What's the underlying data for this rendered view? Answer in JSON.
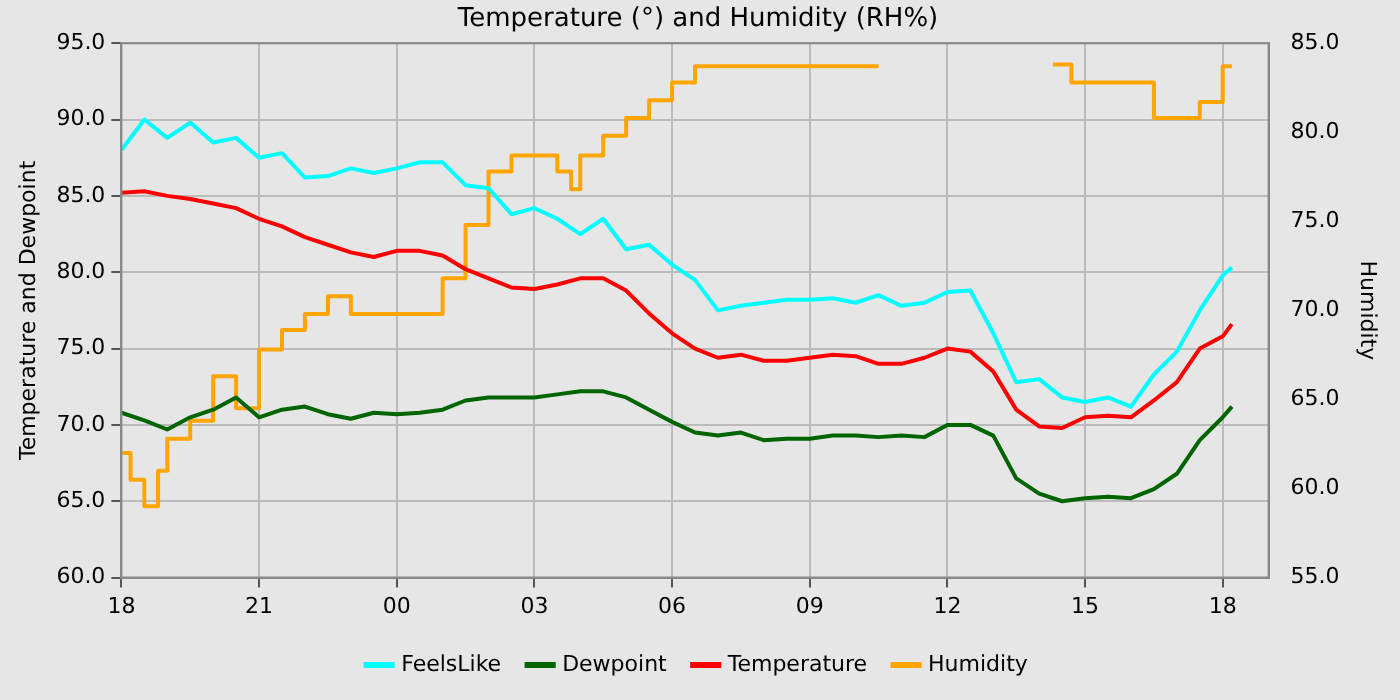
{
  "chart_data": {
    "type": "line",
    "title": "Temperature (°) and Humidity (RH%)",
    "ylabel": "Temperature and Dewpoint",
    "y2label": "Humidity",
    "x": [
      "--01-01T18:00",
      "--01-01T18:30",
      "--01-01T19:00",
      "--01-01T19:30",
      "--01-01T20:00",
      "--01-01T20:30",
      "--01-01T21:00",
      "--01-01T21:30",
      "--01-01T22:00",
      "--01-01T22:30",
      "--01-01T23:00",
      "--01-01T23:30",
      "--01-02T00:00",
      "--01-02T00:30",
      "--01-02T01:00",
      "--01-02T01:30",
      "--01-02T02:00",
      "--01-02T02:30",
      "--01-02T03:00",
      "--01-02T03:30",
      "--01-02T04:00",
      "--01-02T04:30",
      "--01-02T05:00",
      "--01-02T05:30",
      "--01-02T06:00",
      "--01-02T06:30",
      "--01-02T07:00",
      "--01-02T07:30",
      "--01-02T08:00",
      "--01-02T08:30",
      "--01-02T09:00",
      "--01-02T09:30",
      "--01-02T10:00",
      "--01-02T10:30",
      "--01-02T11:00",
      "--01-02T11:30",
      "--01-02T12:00",
      "--01-02T12:30",
      "--01-02T13:00",
      "--01-02T13:30",
      "--01-02T14:00",
      "--01-02T14:30",
      "--01-02T15:00",
      "--01-02T15:30",
      "--01-02T16:00",
      "--01-02T16:30",
      "--01-02T17:00",
      "--01-02T17:30",
      "--01-02T18:00",
      "--01-02T18:12"
    ],
    "series": [
      {
        "name": "FeelsLike",
        "color": "#00ffff",
        "values": [
          88.0,
          90.0,
          88.8,
          89.8,
          88.5,
          88.8,
          87.5,
          87.8,
          86.2,
          86.3,
          86.8,
          86.5,
          86.8,
          87.2,
          87.2,
          85.7,
          85.5,
          83.8,
          84.2,
          83.5,
          82.5,
          83.5,
          81.5,
          81.8,
          80.5,
          79.5,
          77.5,
          77.8,
          78.0,
          78.2,
          78.2,
          78.3,
          78.0,
          78.5,
          77.8,
          78.0,
          78.7,
          78.8,
          76.0,
          72.8,
          73.0,
          71.8,
          71.5,
          71.8,
          71.2,
          73.3,
          74.8,
          77.5,
          79.8,
          80.3
        ]
      },
      {
        "name": "Dewpoint",
        "color": "#006400",
        "values": [
          70.8,
          70.3,
          69.7,
          70.5,
          71.0,
          71.8,
          70.5,
          71.0,
          71.2,
          70.7,
          70.4,
          70.8,
          70.7,
          70.8,
          71.0,
          71.6,
          71.8,
          71.8,
          71.8,
          72.0,
          72.2,
          72.2,
          71.8,
          71.0,
          70.2,
          69.5,
          69.3,
          69.5,
          69.0,
          69.1,
          69.1,
          69.3,
          69.3,
          69.2,
          69.3,
          69.2,
          70.0,
          70.0,
          69.3,
          66.5,
          65.5,
          65.0,
          65.2,
          65.3,
          65.2,
          65.8,
          66.8,
          69.0,
          70.5,
          71.2
        ]
      },
      {
        "name": "Temperature",
        "color": "#ff0000",
        "values": [
          85.2,
          85.3,
          85.0,
          84.8,
          84.5,
          84.2,
          83.5,
          83.0,
          82.3,
          81.8,
          81.3,
          81.0,
          81.4,
          81.4,
          81.1,
          80.2,
          79.6,
          79.0,
          78.9,
          79.2,
          79.6,
          79.6,
          78.8,
          77.3,
          76.0,
          75.0,
          74.4,
          74.6,
          74.2,
          74.2,
          74.4,
          74.6,
          74.5,
          74.0,
          74.0,
          74.4,
          75.0,
          74.8,
          73.5,
          71.0,
          69.9,
          69.8,
          70.5,
          70.6,
          70.5,
          71.6,
          72.8,
          75.0,
          75.8,
          76.6
        ]
      },
      {
        "name": "Humidity",
        "color": "#ffa500",
        "type": "step",
        "axis": "y2",
        "x": [
          "--01-01T18:00",
          "--01-01T18:12",
          "--01-01T18:30",
          "--01-01T18:48",
          "--01-01T19:00",
          "--01-01T19:30",
          "--01-01T20:00",
          "--01-01T20:30",
          "--01-01T21:00",
          "--01-01T21:30",
          "--01-01T22:00",
          "--01-01T22:30",
          "--01-01T23:00",
          "--01-01T23:30",
          "--01-02T00:00",
          "--01-02T00:30",
          "--01-02T01:00",
          "--01-02T01:30",
          "--01-02T02:00",
          "--01-02T02:30",
          "--01-02T03:00",
          "--01-02T03:30",
          "--01-02T03:48",
          "--01-02T04:00",
          "--01-02T04:30",
          "--01-02T05:00",
          "--01-02T05:30",
          "--01-02T06:00",
          "--01-02T06:30",
          "--01-02T07:00",
          "--01-02T08:00",
          "--01-02T09:00",
          "--01-02T10:00",
          "--01-02T10:30",
          "--01-02T10:36",
          "--01-02T14:18",
          "--01-02T14:42",
          "--01-02T15:00",
          "--01-02T16:00",
          "--01-02T16:30",
          "--01-02T17:00",
          "--01-02T17:18",
          "--01-02T17:30",
          "--01-02T18:00",
          "--01-02T18:12"
        ],
        "values": [
          62.0,
          60.5,
          59.0,
          61.0,
          62.8,
          63.8,
          66.3,
          64.5,
          67.8,
          68.9,
          69.8,
          70.8,
          69.8,
          69.8,
          69.8,
          69.8,
          71.8,
          74.8,
          77.8,
          78.7,
          78.7,
          77.8,
          76.8,
          78.7,
          79.8,
          80.8,
          81.8,
          82.8,
          83.7,
          83.7,
          83.7,
          83.7,
          83.7,
          83.7,
          null,
          83.8,
          82.8,
          82.8,
          82.8,
          80.8,
          80.8,
          80.8,
          81.7,
          83.7,
          83.7
        ]
      }
    ],
    "xlim": [
      "--01-01T18:00",
      "--01-02T19:00"
    ],
    "xticks": [
      {
        "value": "--01-01T18:00",
        "label": "18"
      },
      {
        "value": "--01-01T21:00",
        "label": "21"
      },
      {
        "value": "--01-02T00:00",
        "label": "00"
      },
      {
        "value": "--01-02T03:00",
        "label": "03"
      },
      {
        "value": "--01-02T06:00",
        "label": "06"
      },
      {
        "value": "--01-02T09:00",
        "label": "09"
      },
      {
        "value": "--01-02T12:00",
        "label": "12"
      },
      {
        "value": "--01-02T15:00",
        "label": "15"
      },
      {
        "value": "--01-02T18:00",
        "label": "18"
      }
    ],
    "ylim": [
      60,
      95
    ],
    "yticks": [
      {
        "value": 60,
        "label": "60.0"
      },
      {
        "value": 65,
        "label": "65.0"
      },
      {
        "value": 70,
        "label": "70.0"
      },
      {
        "value": 75,
        "label": "75.0"
      },
      {
        "value": 80,
        "label": "80.0"
      },
      {
        "value": 85,
        "label": "85.0"
      },
      {
        "value": 90,
        "label": "90.0"
      },
      {
        "value": 95,
        "label": "95.0"
      }
    ],
    "y2lim": [
      55,
      85
    ],
    "y2ticks": [
      {
        "value": 55,
        "label": "55.0"
      },
      {
        "value": 60,
        "label": "60.0"
      },
      {
        "value": 65,
        "label": "65.0"
      },
      {
        "value": 70,
        "label": "70.0"
      },
      {
        "value": 75,
        "label": "75.0"
      },
      {
        "value": 80,
        "label": "80.0"
      },
      {
        "value": 85,
        "label": "85.0"
      }
    ],
    "grid": true,
    "legend": "bottom",
    "marker": "none",
    "line_style": "solid"
  }
}
